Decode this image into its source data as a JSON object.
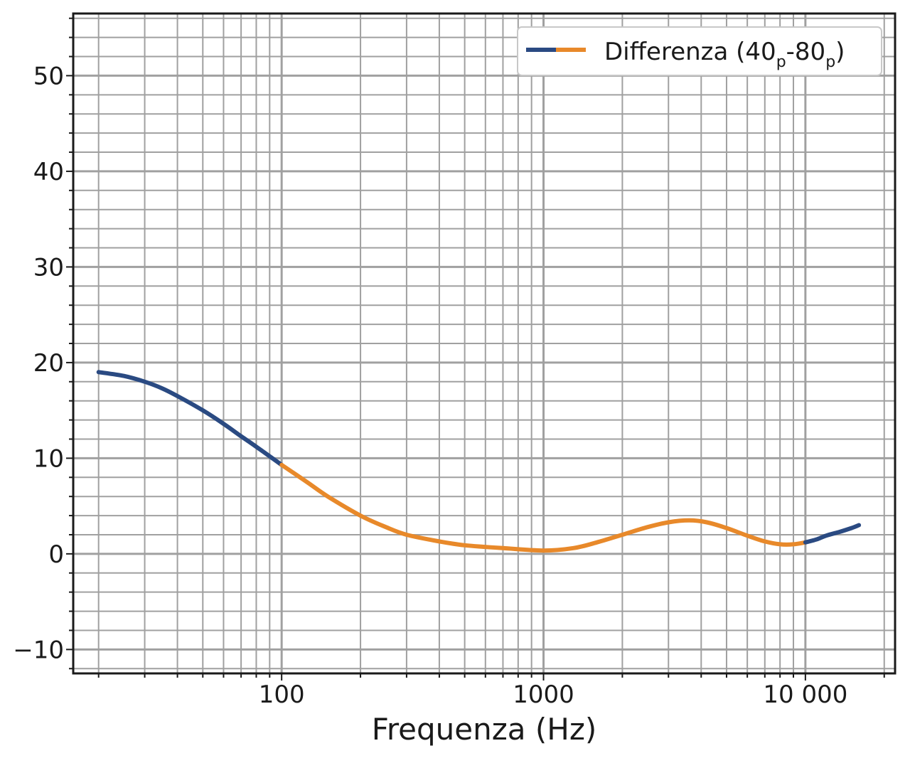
{
  "chart_data": {
    "type": "line",
    "xlabel": "Frequenza (Hz)",
    "ylabel": "",
    "x_scale": "log",
    "xlim": [
      16,
      22000
    ],
    "ylim": [
      -12.5,
      56.5
    ],
    "x_ticks": [
      {
        "value": 100,
        "label": "100"
      },
      {
        "value": 1000,
        "label": "1000"
      },
      {
        "value": 10000,
        "label": "10 000"
      }
    ],
    "y_ticks": [
      {
        "value": -10,
        "label": "−10"
      },
      {
        "value": 0,
        "label": "0"
      },
      {
        "value": 10,
        "label": "10"
      },
      {
        "value": 20,
        "label": "20"
      },
      {
        "value": 30,
        "label": "30"
      },
      {
        "value": 40,
        "label": "40"
      },
      {
        "value": 50,
        "label": "50"
      }
    ],
    "grid": true,
    "legend": {
      "placement": "top-right",
      "label_main": "Differenza (40",
      "label_sub1": "p",
      "label_mid": "-80",
      "label_sub2": "p",
      "label_end": ")"
    },
    "colors": {
      "blue": "#2a4a82",
      "orange": "#e8892a",
      "grid": "#a0a0a0",
      "frame": "#1a1a1a"
    },
    "series": [
      {
        "segment": "low",
        "color": "blue",
        "points": [
          [
            20,
            19.0
          ],
          [
            25,
            18.6
          ],
          [
            30,
            18.0
          ],
          [
            35,
            17.3
          ],
          [
            40,
            16.5
          ],
          [
            50,
            15.0
          ],
          [
            60,
            13.6
          ],
          [
            70,
            12.3
          ],
          [
            80,
            11.2
          ],
          [
            90,
            10.2
          ],
          [
            100,
            9.3
          ]
        ]
      },
      {
        "segment": "mid",
        "color": "orange",
        "points": [
          [
            100,
            9.3
          ],
          [
            125,
            7.5
          ],
          [
            150,
            6.0
          ],
          [
            200,
            4.0
          ],
          [
            250,
            2.8
          ],
          [
            300,
            2.0
          ],
          [
            400,
            1.3
          ],
          [
            500,
            0.9
          ],
          [
            700,
            0.6
          ],
          [
            1000,
            0.35
          ],
          [
            1300,
            0.6
          ],
          [
            1600,
            1.2
          ],
          [
            2000,
            2.0
          ],
          [
            2500,
            2.8
          ],
          [
            3000,
            3.3
          ],
          [
            3600,
            3.5
          ],
          [
            4200,
            3.3
          ],
          [
            5000,
            2.7
          ],
          [
            6000,
            1.9
          ],
          [
            7000,
            1.3
          ],
          [
            8000,
            1.0
          ],
          [
            9000,
            1.0
          ],
          [
            10000,
            1.2
          ]
        ]
      },
      {
        "segment": "high",
        "color": "blue",
        "points": [
          [
            10000,
            1.2
          ],
          [
            11000,
            1.5
          ],
          [
            12000,
            1.9
          ],
          [
            13500,
            2.3
          ],
          [
            15000,
            2.7
          ],
          [
            16000,
            3.0
          ]
        ]
      }
    ]
  }
}
